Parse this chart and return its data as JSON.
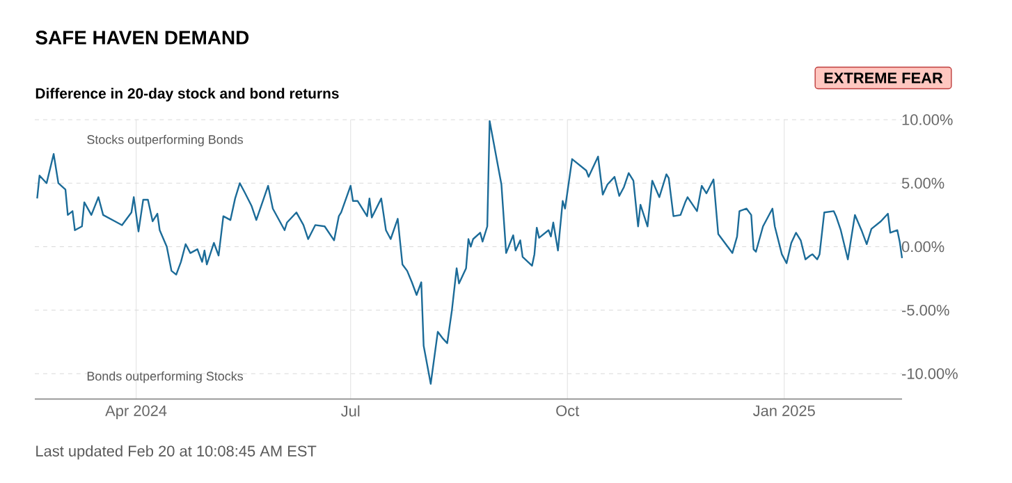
{
  "chart_data": {
    "type": "line",
    "title": "SAFE HAVEN DEMAND",
    "subtitle": "Difference in 20-day stock and bond returns",
    "x": [
      "2024-02-19",
      "2024-02-20",
      "2024-02-23",
      "2024-02-26",
      "2024-02-28",
      "2024-03-02",
      "2024-03-03",
      "2024-03-05",
      "2024-03-06",
      "2024-03-09",
      "2024-03-10",
      "2024-03-13",
      "2024-03-16",
      "2024-03-18",
      "2024-03-23",
      "2024-03-26",
      "2024-03-30",
      "2024-03-31",
      "2024-04-02",
      "2024-04-04",
      "2024-04-06",
      "2024-04-08",
      "2024-04-10",
      "2024-04-11",
      "2024-04-14",
      "2024-04-16",
      "2024-04-18",
      "2024-04-20",
      "2024-04-22",
      "2024-04-24",
      "2024-04-27",
      "2024-04-29",
      "2024-04-30",
      "2024-05-01",
      "2024-05-04",
      "2024-05-06",
      "2024-05-08",
      "2024-05-11",
      "2024-05-13",
      "2024-05-15",
      "2024-05-17",
      "2024-05-20",
      "2024-05-22",
      "2024-05-27",
      "2024-05-29",
      "2024-06-03",
      "2024-06-04",
      "2024-06-08",
      "2024-06-11",
      "2024-06-13",
      "2024-06-16",
      "2024-06-20",
      "2024-06-24",
      "2024-06-26",
      "2024-06-27",
      "2024-07-01",
      "2024-07-02",
      "2024-07-04",
      "2024-07-08",
      "2024-07-09",
      "2024-07-10",
      "2024-07-14",
      "2024-07-16",
      "2024-07-18",
      "2024-07-21",
      "2024-07-23",
      "2024-07-25",
      "2024-07-27",
      "2024-07-29",
      "2024-07-31",
      "2024-08-01",
      "2024-08-04",
      "2024-08-07",
      "2024-08-09",
      "2024-08-11",
      "2024-08-13",
      "2024-08-15",
      "2024-08-16",
      "2024-08-19",
      "2024-08-20",
      "2024-08-21",
      "2024-08-22",
      "2024-08-25",
      "2024-08-26",
      "2024-08-28",
      "2024-08-29",
      "2024-09-03",
      "2024-09-05",
      "2024-09-08",
      "2024-09-09",
      "2024-09-11",
      "2024-09-12",
      "2024-09-16",
      "2024-09-17",
      "2024-09-18",
      "2024-09-19",
      "2024-09-23",
      "2024-09-24",
      "2024-09-25",
      "2024-09-27",
      "2024-09-29",
      "2024-09-30",
      "2024-10-03",
      "2024-10-09",
      "2024-10-10",
      "2024-10-14",
      "2024-10-16",
      "2024-10-18",
      "2024-10-21",
      "2024-10-23",
      "2024-10-25",
      "2024-10-27",
      "2024-10-29",
      "2024-10-31",
      "2024-11-01",
      "2024-11-04",
      "2024-11-06",
      "2024-11-09",
      "2024-11-12",
      "2024-11-13",
      "2024-11-15",
      "2024-11-18",
      "2024-11-20",
      "2024-11-21",
      "2024-11-25",
      "2024-11-27",
      "2024-11-29",
      "2024-12-02",
      "2024-12-04",
      "2024-12-10",
      "2024-12-12",
      "2024-12-13",
      "2024-12-16",
      "2024-12-18",
      "2024-12-19",
      "2024-12-20",
      "2024-12-23",
      "2024-12-27",
      "2024-12-28",
      "2024-12-31",
      "2025-01-02",
      "2025-01-04",
      "2025-01-06",
      "2025-01-08",
      "2025-01-10",
      "2025-01-12",
      "2025-01-13",
      "2025-01-15",
      "2025-01-16",
      "2025-01-18",
      "2025-01-22",
      "2025-01-23",
      "2025-01-25",
      "2025-01-28",
      "2025-01-31",
      "2025-02-03",
      "2025-02-05",
      "2025-02-07",
      "2025-02-11",
      "2025-02-12",
      "2025-02-14",
      "2025-02-15",
      "2025-02-18",
      "2025-02-19",
      "2025-02-20"
    ],
    "series": [
      {
        "color": "#1b6b98",
        "values": [
          3.8,
          5.6,
          5.0,
          7.3,
          5.0,
          4.5,
          2.5,
          2.8,
          1.3,
          1.6,
          3.5,
          2.5,
          3.9,
          2.5,
          2.0,
          1.7,
          2.7,
          3.9,
          1.2,
          3.7,
          3.7,
          2.0,
          2.6,
          1.3,
          0.0,
          -1.9,
          -2.2,
          -1.2,
          0.2,
          -0.5,
          -0.2,
          -1.2,
          -0.3,
          -1.4,
          0.3,
          -0.7,
          2.4,
          2.1,
          3.8,
          5.0,
          4.3,
          3.2,
          2.1,
          4.8,
          3.0,
          1.3,
          1.9,
          2.7,
          1.7,
          0.6,
          1.7,
          1.6,
          0.5,
          2.4,
          2.7,
          4.8,
          3.6,
          3.6,
          2.4,
          3.8,
          2.3,
          3.8,
          1.3,
          0.6,
          2.2,
          -1.4,
          -1.9,
          -2.8,
          -3.8,
          -2.8,
          -7.8,
          -10.8,
          -6.7,
          -7.2,
          -7.6,
          -5.0,
          -1.7,
          -2.9,
          -1.7,
          0.6,
          0.0,
          0.6,
          1.1,
          0.4,
          1.6,
          9.9,
          4.9,
          -0.5,
          0.9,
          -0.3,
          0.5,
          -0.8,
          -1.5,
          -0.6,
          1.5,
          0.7,
          1.3,
          0.8,
          1.9,
          -0.3,
          3.6,
          3.0,
          6.9,
          6.0,
          5.5,
          7.1,
          4.1,
          4.9,
          5.5,
          4.0,
          4.7,
          5.8,
          5.2,
          1.6,
          3.3,
          1.6,
          5.2,
          3.9,
          5.7,
          5.4,
          2.4,
          2.5,
          3.5,
          3.9,
          2.8,
          4.8,
          4.2,
          5.3,
          1.0,
          -0.5,
          0.8,
          2.8,
          3.0,
          2.5,
          -0.2,
          -0.4,
          1.6,
          3.0,
          1.6,
          -0.6,
          -1.3,
          0.3,
          1.1,
          0.5,
          -1.0,
          -0.7,
          -0.6,
          -1.0,
          -0.6,
          2.7,
          2.8,
          2.4,
          1.3,
          -1.0,
          2.5,
          1.2,
          0.2,
          1.4,
          2.0,
          2.2,
          2.6,
          1.1,
          1.3,
          0.4,
          -0.9
        ]
      }
    ],
    "xlim": [
      "2024-02-18",
      "2025-02-20"
    ],
    "xticks": [
      {
        "value": "2024-04-01",
        "label": "Apr 2024"
      },
      {
        "value": "2024-07-01",
        "label": "Jul"
      },
      {
        "value": "2024-10-01",
        "label": "Oct"
      },
      {
        "value": "2025-01-01",
        "label": "Jan 2025"
      }
    ],
    "ylim": [
      -12,
      10
    ],
    "yticks": [
      {
        "value": -10,
        "label": "-10.00%"
      },
      {
        "value": -5,
        "label": "-5.00%"
      },
      {
        "value": 0,
        "label": "0.00%"
      },
      {
        "value": 5,
        "label": "5.00%"
      },
      {
        "value": 10,
        "label": "10.00%"
      }
    ],
    "grid": true,
    "annotations": [
      "EXTREME FEAR",
      "Stocks outperforming Bonds",
      "Bonds outperforming Stocks",
      "Last updated Feb 20 at 10:08:45 AM EST"
    ]
  }
}
